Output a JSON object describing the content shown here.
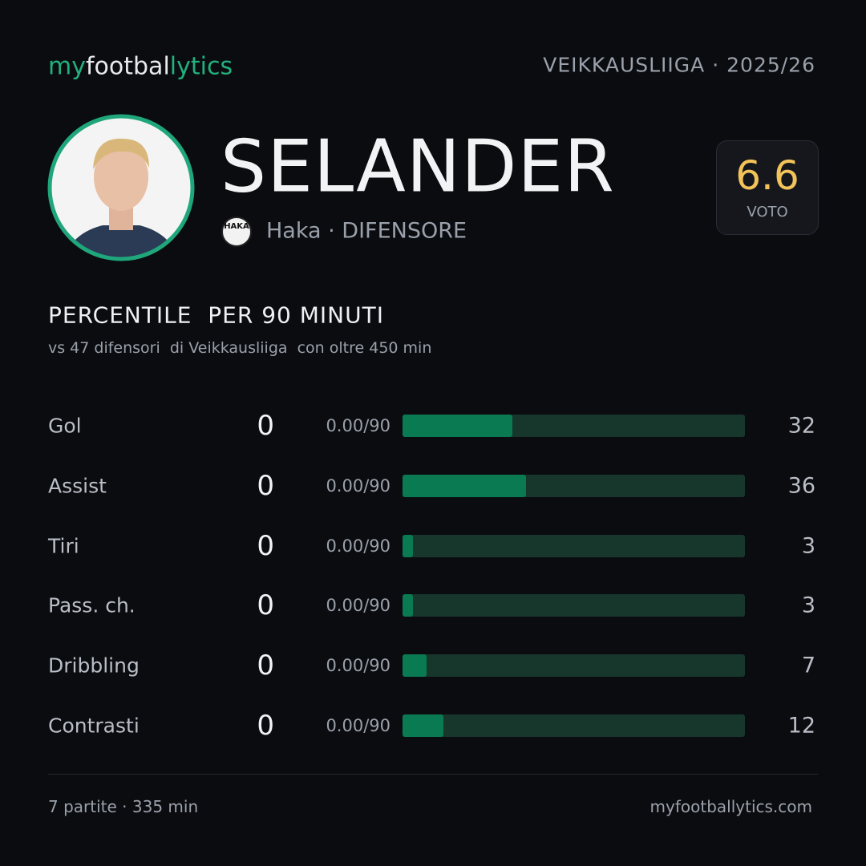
{
  "header": {
    "logo": [
      "my",
      "footbal",
      "lytics"
    ],
    "league": "VEIKKAUSLIIGA",
    "season": "· 2025/26"
  },
  "player": {
    "name": "SELANDER",
    "club_badge": "HAKA",
    "club_role": "Haka · DIFENSORE",
    "rating": "6.6",
    "rating_label": "VOTO"
  },
  "section": {
    "title": "PERCENTILE  PER 90 MINUTI",
    "subtitle": "vs 47 difensori  di Veikkausliiga  con oltre 450 min"
  },
  "stats": {
    "xlim": [
      0,
      100
    ],
    "rows": [
      {
        "label": "Gol",
        "value": 0,
        "per90": "0.00/90",
        "percentile": 32
      },
      {
        "label": "Assist",
        "value": 0,
        "per90": "0.00/90",
        "percentile": 36
      },
      {
        "label": "Tiri",
        "value": 0,
        "per90": "0.00/90",
        "percentile": 3
      },
      {
        "label": "Pass. ch.",
        "value": 0,
        "per90": "0.00/90",
        "percentile": 3
      },
      {
        "label": "Dribbling",
        "value": 0,
        "per90": "0.00/90",
        "percentile": 7
      },
      {
        "label": "Contrasti",
        "value": 0,
        "per90": "0.00/90",
        "percentile": 12
      }
    ]
  },
  "footer": {
    "summary": "7 partite · 335 min",
    "site": "myfootballytics.com"
  }
}
